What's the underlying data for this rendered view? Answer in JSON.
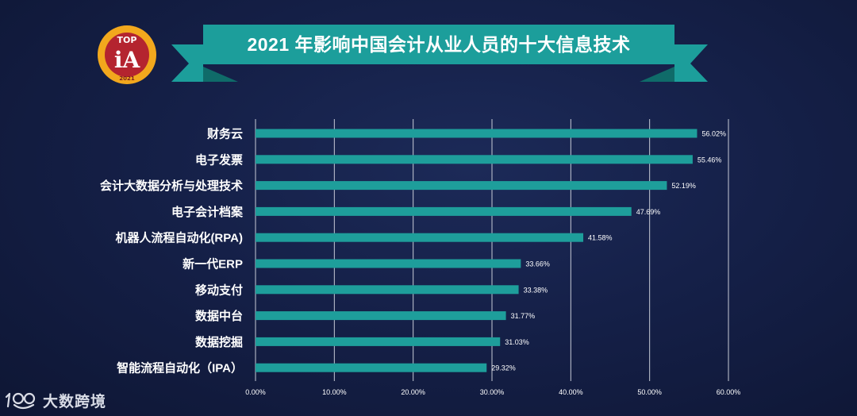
{
  "title": "2021 年影响中国会计从业人员的十大信息技术",
  "logo": {
    "top_text": "TOP",
    "main_text": "iA",
    "year": "2021"
  },
  "watermark": {
    "text": "大数跨境",
    "icon": "speech-bubble-logo-icon"
  },
  "colors": {
    "bar": "#1e9e9b",
    "banner": "#1c9e9b",
    "banner_dark": "#0f6b69",
    "grid": "#c7cbd6",
    "label": "#ffffff"
  },
  "chart_data": {
    "type": "bar",
    "orientation": "horizontal",
    "categories": [
      "财务云",
      "电子发票",
      "会计大数据分析与处理技术",
      "电子会计档案",
      "机器人流程自动化(RPA)",
      "新一代ERP",
      "移动支付",
      "数据中台",
      "数据挖掘",
      "智能流程自动化（IPA）"
    ],
    "values": [
      56.02,
      55.46,
      52.19,
      47.69,
      41.58,
      33.66,
      33.38,
      31.77,
      31.03,
      29.32
    ],
    "value_labels": [
      "56.02%",
      "55.46%",
      "52.19%",
      "47.69%",
      "41.58%",
      "33.66%",
      "33.38%",
      "31.77%",
      "31.03%",
      "29.32%"
    ],
    "xticks": [
      "0.00%",
      "10.00%",
      "20.00%",
      "30.00%",
      "40.00%",
      "50.00%",
      "60.00%"
    ],
    "xlim": [
      0,
      60
    ],
    "grid": "vertical",
    "title": "2021 年影响中国会计从业人员的十大信息技术",
    "xlabel": "",
    "ylabel": ""
  }
}
